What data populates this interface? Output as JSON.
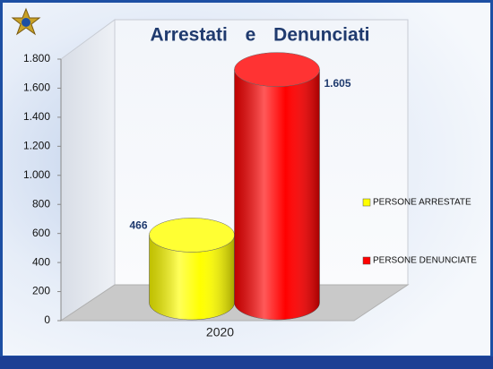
{
  "chart_data": {
    "type": "cylinder",
    "title": "Arrestati e Denunciati",
    "categories": [
      "2020"
    ],
    "series": [
      {
        "name": "PERSONE ARRESTATE",
        "color": "#ffff00",
        "values": [
          466
        ]
      },
      {
        "name": "PERSONE DENUNCIATE",
        "color": "#ff0000",
        "values": [
          1605
        ],
        "value_labels": [
          "1.605"
        ]
      }
    ],
    "ylim": [
      0,
      1800
    ],
    "yticks": [
      0,
      200,
      400,
      600,
      800,
      {
        "value": 1000,
        "label": "1.000"
      },
      {
        "value": 1200,
        "label": "1.200"
      },
      {
        "value": 1400,
        "label": "1.400"
      },
      {
        "value": 1600,
        "label": "1.600"
      },
      {
        "value": 1800,
        "label": "1.800"
      }
    ],
    "legend": "right"
  }
}
